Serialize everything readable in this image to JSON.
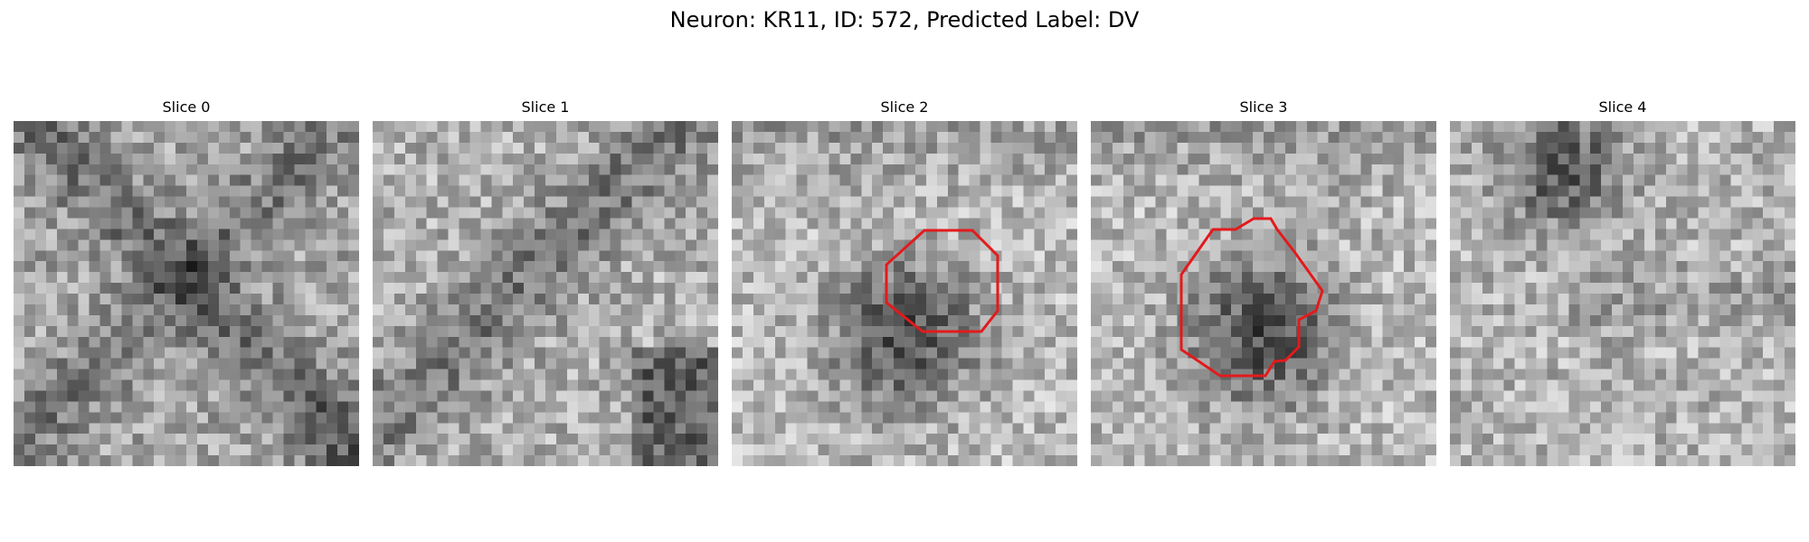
{
  "figure": {
    "title": "Neuron: KR11, ID: 572, Predicted Label: DV"
  },
  "colors": {
    "roi_outline": "#e31a1c",
    "background": "#ffffff",
    "colormap": "grayscale"
  },
  "slices": [
    {
      "title": "Slice 0",
      "has_roi": false,
      "pattern": "diagonal-dark-bands",
      "seed": 11
    },
    {
      "title": "Slice 1",
      "has_roi": false,
      "pattern": "diagonal-dark-band-corner",
      "seed": 23
    },
    {
      "title": "Slice 2",
      "has_roi": true,
      "pattern": "dark-blob-center",
      "seed": 37
    },
    {
      "title": "Slice 3",
      "has_roi": true,
      "pattern": "dark-blob-center",
      "seed": 53
    },
    {
      "title": "Slice 4",
      "has_roi": false,
      "pattern": "dark-top-left",
      "seed": 71
    }
  ]
}
